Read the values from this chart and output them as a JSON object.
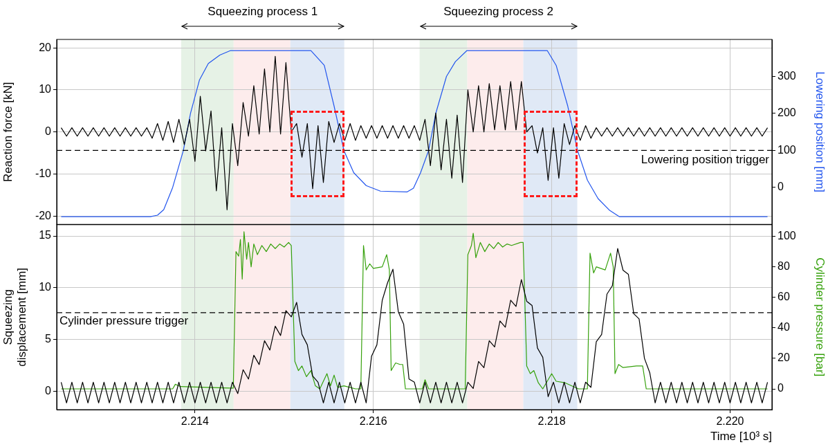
{
  "chart_data": [
    {
      "type": "line",
      "ylabel": "Reaction force [kN]",
      "y2label": "Lowering position [mm]",
      "annotations": [
        "Squeezing process 1",
        "Squeezing process 2"
      ],
      "xlim": [
        2.21245,
        2.22047
      ],
      "xticks": [
        2.214,
        2.216,
        2.218,
        2.22
      ],
      "ylim": [
        -22,
        22
      ],
      "yticks": [
        -20,
        -10,
        0,
        10,
        20
      ],
      "y2lim": [
        -100,
        400
      ],
      "y2ticks": [
        0,
        100,
        200,
        300
      ],
      "grid": true,
      "legend": false,
      "tick_labels": "y",
      "marker": "none",
      "line_style": "solid",
      "ref_lines": [
        {
          "axis": "y2",
          "value": 100,
          "label": "Lowering position trigger",
          "color": "#000000",
          "line_style": "dashed"
        }
      ],
      "bands": [
        {
          "axis": "x",
          "from": 2.213845,
          "to": 2.214434,
          "color": "#e6f2e6"
        },
        {
          "axis": "x",
          "from": 2.214434,
          "to": 2.21507,
          "color": "#fdecec"
        },
        {
          "axis": "x",
          "from": 2.21507,
          "to": 2.215674,
          "color": "#e0e9f6"
        },
        {
          "axis": "x",
          "from": 2.216519,
          "to": 2.217054,
          "color": "#e6f2e6"
        },
        {
          "axis": "x",
          "from": 2.217054,
          "to": 2.217682,
          "color": "#fdecec"
        },
        {
          "axis": "x",
          "from": 2.217682,
          "to": 2.218287,
          "color": "#e0e9f6"
        }
      ],
      "series": [
        {
          "color": "#000000",
          "axis": "y",
          "x": [
            2.2125,
            2.21256,
            2.21262,
            2.21268,
            2.21274,
            2.2128,
            2.21286,
            2.21292,
            2.21298,
            2.21304,
            2.2131,
            2.21316,
            2.21322,
            2.21328,
            2.21334,
            2.2134,
            2.21346,
            2.21352,
            2.21358,
            2.21364,
            2.2137,
            2.21376,
            2.21382,
            2.21388,
            2.21394,
            2.214,
            2.21406,
            2.21412,
            2.21418,
            2.21424,
            2.2143,
            2.21436,
            2.21442,
            2.21448,
            2.21454,
            2.2146,
            2.21466,
            2.21472,
            2.21478,
            2.21484,
            2.2149,
            2.21496,
            2.21502,
            2.21508,
            2.21514,
            2.2152,
            2.21526,
            2.21532,
            2.21538,
            2.21544,
            2.2155,
            2.21556,
            2.21562,
            2.21568,
            2.21574,
            2.2158,
            2.21586,
            2.21592,
            2.21598,
            2.21604,
            2.2161,
            2.21616,
            2.21622,
            2.21628,
            2.21634,
            2.2164,
            2.21646,
            2.21652,
            2.21658,
            2.21664,
            2.2167,
            2.21676,
            2.21682,
            2.21688,
            2.21694,
            2.217,
            2.21706,
            2.21712,
            2.21718,
            2.21724,
            2.2173,
            2.21736,
            2.21742,
            2.21748,
            2.21754,
            2.2176,
            2.21766,
            2.21772,
            2.21778,
            2.21784,
            2.2179,
            2.21796,
            2.21802,
            2.21808,
            2.21814,
            2.2182,
            2.21826,
            2.21832,
            2.21838,
            2.21844,
            2.2185,
            2.21856,
            2.21862,
            2.21868,
            2.21874,
            2.2188,
            2.21886,
            2.21892,
            2.21898,
            2.21904,
            2.2191,
            2.21916,
            2.21922,
            2.21928,
            2.21934,
            2.2194,
            2.21946,
            2.21952,
            2.21958,
            2.21964,
            2.2197,
            2.21976,
            2.21982,
            2.21988,
            2.21994,
            2.22,
            2.22006,
            2.22012,
            2.22018,
            2.22024,
            2.2203,
            2.22036,
            2.22042
          ],
          "values": [
            1,
            -1,
            1,
            -1,
            1,
            -1,
            1,
            -1,
            1,
            -1,
            1,
            -1,
            1,
            -1,
            1,
            -1,
            1,
            -1.5,
            2,
            -2,
            2.5,
            -2.5,
            3,
            -3,
            3,
            -7,
            8.5,
            -4.5,
            5,
            -14,
            1,
            -18.5,
            2,
            -8,
            7,
            -1,
            11,
            -0.5,
            15,
            0,
            18,
            -0.5,
            16.5,
            0,
            2,
            -6,
            2,
            -13.5,
            1.5,
            -12,
            2.5,
            -2.5,
            2,
            -2,
            2,
            -2,
            1.5,
            -1.5,
            1.5,
            -1.5,
            1.5,
            -1.5,
            1.5,
            -1.5,
            1.5,
            -1.5,
            1.5,
            -2,
            3,
            -8,
            4.5,
            -9,
            3,
            -11,
            4,
            -12,
            10,
            0,
            11,
            0,
            11.5,
            0.5,
            11,
            0.5,
            12,
            0.5,
            12,
            0,
            1.5,
            -5,
            1,
            -11.5,
            1,
            -11,
            2,
            -3,
            1.5,
            -2,
            1.5,
            -1.5,
            1,
            -1,
            1,
            -1,
            1,
            -1,
            1,
            -1,
            1,
            -1,
            1,
            -1,
            1,
            -1,
            1,
            -1,
            1,
            -1,
            1,
            -1,
            1,
            -1,
            1,
            -1,
            1,
            -1,
            1,
            -1,
            1,
            -1,
            1,
            -1,
            1
          ]
        },
        {
          "color": "#2255ee",
          "axis": "y2",
          "x": [
            2.2125,
            2.2135,
            2.21358,
            2.21365,
            2.21375,
            2.21387,
            2.21395,
            2.21405,
            2.21415,
            2.21428,
            2.2144,
            2.2153,
            2.21545,
            2.21556,
            2.21567,
            2.21578,
            2.21592,
            2.21608,
            2.21638,
            2.21645,
            2.21653,
            2.21662,
            2.2167,
            2.21682,
            2.21692,
            2.21705,
            2.21795,
            2.21805,
            2.21818,
            2.21829,
            2.2184,
            2.21852,
            2.21865,
            2.21876,
            2.22042
          ],
          "values": [
            -79,
            -79,
            -75,
            -60,
            0,
            100,
            200,
            290,
            335,
            358,
            370,
            370,
            330,
            220,
            100,
            40,
            5,
            -10,
            -12,
            -2,
            40,
            100,
            200,
            300,
            340,
            370,
            370,
            330,
            220,
            100,
            20,
            -30,
            -62,
            -79,
            -79
          ]
        }
      ]
    },
    {
      "type": "line",
      "xlabel": "Time [10³ s]",
      "ylabel": "Squeezing displacement [mm]",
      "y2label": "Cylinder pressure [bar]",
      "xlim": [
        2.21245,
        2.22047
      ],
      "xticks": [
        2.214,
        2.216,
        2.218,
        {
          "value": 2.22,
          "label": "2.220"
        }
      ],
      "ylim": [
        -1.75,
        16.1
      ],
      "yticks": [
        0,
        5,
        10,
        15
      ],
      "y2lim": [
        -13.6,
        107.7
      ],
      "y2ticks": [
        0,
        20,
        40,
        60,
        80,
        100
      ],
      "grid": true,
      "legend": false,
      "marker": "none",
      "line_style": "solid",
      "ref_lines": [
        {
          "axis": "y2",
          "value": 50,
          "label": "Cylinder pressure trigger",
          "color": "#000000",
          "line_style": "dashed"
        }
      ],
      "bands": [
        {
          "axis": "x",
          "from": 2.213845,
          "to": 2.214434,
          "color": "#e6f2e6"
        },
        {
          "axis": "x",
          "from": 2.214434,
          "to": 2.21507,
          "color": "#fdecec"
        },
        {
          "axis": "x",
          "from": 2.21507,
          "to": 2.215674,
          "color": "#e0e9f6"
        },
        {
          "axis": "x",
          "from": 2.216519,
          "to": 2.217054,
          "color": "#e6f2e6"
        },
        {
          "axis": "x",
          "from": 2.217054,
          "to": 2.217682,
          "color": "#fdecec"
        },
        {
          "axis": "x",
          "from": 2.217682,
          "to": 2.218287,
          "color": "#e0e9f6"
        }
      ],
      "series": [
        {
          "color": "#000000",
          "axis": "y",
          "x": [
            2.2125,
            2.21256,
            2.21262,
            2.21268,
            2.21274,
            2.2128,
            2.21286,
            2.21292,
            2.21298,
            2.21304,
            2.2131,
            2.21316,
            2.21322,
            2.21328,
            2.21334,
            2.2134,
            2.21346,
            2.21352,
            2.21358,
            2.21364,
            2.2137,
            2.21376,
            2.21382,
            2.21388,
            2.21394,
            2.214,
            2.21406,
            2.21412,
            2.21418,
            2.21424,
            2.2143,
            2.21436,
            2.21442,
            2.21448,
            2.21454,
            2.2146,
            2.21466,
            2.21472,
            2.21478,
            2.21484,
            2.2149,
            2.21496,
            2.21502,
            2.21508,
            2.21514,
            2.2152,
            2.21526,
            2.21532,
            2.21538,
            2.21544,
            2.2155,
            2.21556,
            2.21562,
            2.21568,
            2.21574,
            2.2158,
            2.21586,
            2.21592,
            2.21598,
            2.21604,
            2.2161,
            2.21616,
            2.21622,
            2.21628,
            2.21634,
            2.2164,
            2.21646,
            2.21652,
            2.21658,
            2.21664,
            2.2167,
            2.21676,
            2.21682,
            2.21688,
            2.21694,
            2.217,
            2.21706,
            2.21712,
            2.21718,
            2.21724,
            2.2173,
            2.21736,
            2.21742,
            2.21748,
            2.21754,
            2.2176,
            2.21766,
            2.21772,
            2.21778,
            2.21784,
            2.2179,
            2.21796,
            2.21802,
            2.21808,
            2.21814,
            2.2182,
            2.21826,
            2.21832,
            2.21838,
            2.21844,
            2.2185,
            2.21856,
            2.21862,
            2.21868,
            2.21874,
            2.2188,
            2.21886,
            2.21892,
            2.21898,
            2.21904,
            2.2191,
            2.21916,
            2.21922,
            2.21928,
            2.21934,
            2.2194,
            2.21946,
            2.21952,
            2.21958,
            2.21964,
            2.2197,
            2.21976,
            2.21982,
            2.21988,
            2.21994,
            2.22,
            2.22006,
            2.22012,
            2.22018,
            2.22024,
            2.2203,
            2.22036,
            2.22042
          ],
          "values": [
            0.9,
            -1.1,
            0.9,
            -1.1,
            0.9,
            -1.1,
            0.9,
            -1.1,
            0.9,
            -1.1,
            0.9,
            -1.1,
            0.9,
            -1.1,
            0.9,
            -1.1,
            0.9,
            -1.1,
            0.9,
            -1.1,
            0.9,
            -1.1,
            0.9,
            -1.1,
            0.9,
            -1.1,
            0.9,
            -1.1,
            0.9,
            -1.1,
            0.9,
            -1.1,
            0.9,
            -0.2,
            2.1,
            1.2,
            3.5,
            2.6,
            4.9,
            4.0,
            6.3,
            5.4,
            7.8,
            7.2,
            8.6,
            5.5,
            4.5,
            1.5,
            0.9,
            -1.1,
            0.9,
            -1.1,
            0.9,
            -1.1,
            0.9,
            -1.1,
            0.9,
            -1.1,
            3.4,
            4.5,
            8.8,
            10.5,
            11.8,
            7.7,
            6.5,
            1.2,
            0.9,
            -1.1,
            0.9,
            -1.1,
            0.9,
            -1.1,
            0.9,
            -1.1,
            0.9,
            -1.1,
            0.9,
            0.3,
            2.9,
            2.3,
            4.9,
            4.3,
            6.8,
            6.2,
            8.8,
            8.2,
            10.8,
            8.7,
            8.3,
            4.2,
            3.3,
            -0.5,
            0.9,
            -1.1,
            0.9,
            -1.1,
            0.9,
            -1.1,
            0.9,
            0.4,
            4.8,
            5.5,
            9.4,
            10.2,
            13.8,
            11.7,
            11.3,
            7.5,
            7.0,
            3.2,
            1.8,
            -1.1,
            0.9,
            -1.1,
            0.9,
            -1.1,
            0.9,
            -1.1,
            0.9,
            -1.1,
            0.9,
            -1.1,
            0.9,
            -1.1,
            0.9,
            -1.1,
            0.9,
            -1.1,
            0.9,
            -1.1,
            0.9,
            -1.1,
            0.9
          ]
        },
        {
          "color": "#36a10c",
          "axis": "y2",
          "x": [
            2.2125,
            2.21375,
            2.21378,
            2.21384,
            2.2144,
            2.21443,
            2.21446,
            2.21449,
            2.21451,
            2.21453,
            2.21455,
            2.21458,
            2.2146,
            2.21463,
            2.21466,
            2.2147,
            2.21475,
            2.2148,
            2.21485,
            2.2149,
            2.21495,
            2.215,
            2.21505,
            2.21508,
            2.21512,
            2.21516,
            2.2152,
            2.21525,
            2.2153,
            2.21535,
            2.2154,
            2.21548,
            2.21552,
            2.21556,
            2.2156,
            2.21567,
            2.2158,
            2.21586,
            2.21589,
            2.21592,
            2.21596,
            2.216,
            2.2161,
            2.21615,
            2.21618,
            2.2162,
            2.21625,
            2.2163,
            2.21633,
            2.21636,
            2.21655,
            2.21658,
            2.21662,
            2.21703,
            2.21706,
            2.2171,
            2.21712,
            2.21715,
            2.2172,
            2.21725,
            2.2173,
            2.21735,
            2.2174,
            2.21745,
            2.2175,
            2.21755,
            2.21765,
            2.21768,
            2.21772,
            2.21776,
            2.2178,
            2.21785,
            2.2179,
            2.218,
            2.21805,
            2.21815,
            2.2183,
            2.2184,
            2.21843,
            2.21847,
            2.2185,
            2.2186,
            2.21866,
            2.21869,
            2.21871,
            2.21875,
            2.2188,
            2.21895,
            2.21902,
            2.21906,
            2.22042
          ],
          "values": [
            0,
            0,
            3,
            1.5,
            0.5,
            0.5,
            90,
            87,
            98,
            72,
            103,
            85,
            96,
            80,
            95,
            88,
            94,
            90,
            95,
            92,
            95,
            93,
            96,
            94,
            18,
            12,
            15,
            8,
            12,
            2,
            0,
            10,
            2,
            9,
            1,
            2,
            0,
            0,
            94,
            78,
            82,
            79,
            80,
            88,
            78,
            12,
            17,
            16,
            16,
            0,
            0,
            6,
            0,
            0,
            88,
            94,
            102,
            86,
            96,
            90,
            95,
            92,
            96,
            93,
            95,
            94,
            96,
            96,
            15,
            10,
            12,
            4,
            0,
            10,
            5,
            4,
            0,
            0,
            89,
            76,
            80,
            78,
            89,
            80,
            10,
            16,
            14,
            15,
            15,
            0,
            0
          ]
        }
      ]
    }
  ]
}
